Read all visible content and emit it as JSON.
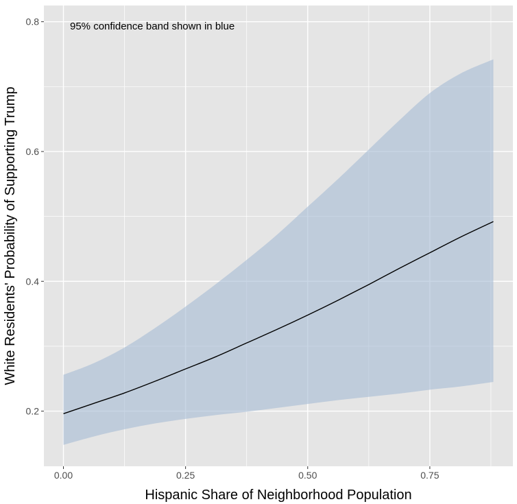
{
  "chart_data": {
    "type": "line",
    "title": "",
    "xlabel": "Hispanic Share of Neighborhood Population",
    "ylabel": "White Residents' Probability of Supporting Trump",
    "annotation": "95% confidence band shown in blue",
    "xlim": [
      -0.04,
      0.92
    ],
    "ylim": [
      0.115,
      0.825
    ],
    "x_ticks": [
      0.0,
      0.25,
      0.5,
      0.75
    ],
    "x_tick_labels": [
      "0.00",
      "0.25",
      "0.50",
      "0.75"
    ],
    "y_ticks": [
      0.2,
      0.4,
      0.6,
      0.8
    ],
    "y_tick_labels": [
      "0.2",
      "0.4",
      "0.6",
      "0.8"
    ],
    "grid": true,
    "series": [
      {
        "x": [
          0.0,
          0.0625,
          0.125,
          0.1875,
          0.25,
          0.3125,
          0.375,
          0.4375,
          0.5,
          0.5625,
          0.625,
          0.6875,
          0.75,
          0.8125,
          0.88
        ],
        "y": [
          0.196,
          0.212,
          0.228,
          0.246,
          0.265,
          0.284,
          0.305,
          0.326,
          0.348,
          0.371,
          0.395,
          0.42,
          0.444,
          0.468,
          0.492
        ]
      }
    ],
    "band": {
      "x": [
        0.0,
        0.0625,
        0.125,
        0.1875,
        0.25,
        0.3125,
        0.375,
        0.4375,
        0.5,
        0.5625,
        0.625,
        0.6875,
        0.75,
        0.8125,
        0.88
      ],
      "lower": [
        0.148,
        0.161,
        0.172,
        0.181,
        0.188,
        0.194,
        0.199,
        0.205,
        0.211,
        0.217,
        0.222,
        0.227,
        0.233,
        0.238,
        0.245
      ],
      "upper": [
        0.256,
        0.274,
        0.298,
        0.328,
        0.361,
        0.396,
        0.433,
        0.472,
        0.515,
        0.558,
        0.603,
        0.648,
        0.69,
        0.72,
        0.742
      ]
    },
    "colors": {
      "panel": "#e5e5e5",
      "grid": "#ffffff",
      "band": "#a8bdd5",
      "line": "#000000"
    }
  }
}
